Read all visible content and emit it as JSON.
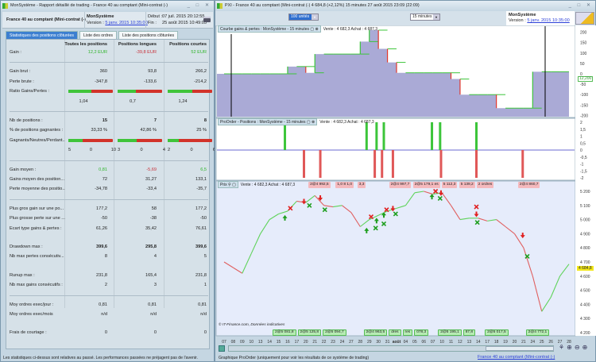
{
  "left": {
    "title": "MonSystème - Rapport détaillé de trading - France 40 au comptant (Mini-contrat (-)",
    "instrument": "France 40 au comptant (Mini-contrat (-)",
    "system_name": "MonSystème",
    "version_label": "Version :",
    "version_value": "5 janv. 2015 10:35:00",
    "start_label": "Début :",
    "start_value": "07 juil. 2015 20:12:55",
    "end_label": "Fin :",
    "end_value": "25 août 2015 10:49:05",
    "tabs": [
      {
        "label": "Statistiques des positions clôturées",
        "active": true
      },
      {
        "label": "Liste des ordres"
      },
      {
        "label": "Liste des positions clôturées"
      }
    ],
    "columns": [
      "Toutes les positions",
      "Positions longues",
      "Positions courtes"
    ],
    "rows": [
      {
        "type": "value",
        "label": "Gain :",
        "values": [
          "12,2 EUR",
          "-39,8 EUR",
          "52 EUR"
        ],
        "colors": [
          "green",
          "red",
          "green"
        ]
      },
      {
        "type": "divider"
      },
      {
        "type": "value",
        "label": "Gain brut :",
        "values": [
          "360",
          "93,8",
          "266,2"
        ]
      },
      {
        "type": "value",
        "label": "Perte brute :",
        "values": [
          "-347,8",
          "-133,6",
          "-214,2"
        ]
      },
      {
        "type": "bar",
        "label": "Ratio Gains/Pertes :",
        "fractions": [
          0.51,
          0.41,
          0.55
        ]
      },
      {
        "type": "value",
        "label": "",
        "values": [
          "1,04",
          "0,7",
          "1,24"
        ],
        "center": true
      },
      {
        "type": "divider"
      },
      {
        "type": "value",
        "label": "Nb de positions :",
        "values": [
          "15",
          "7",
          "8"
        ],
        "bold": true
      },
      {
        "type": "value",
        "label": "% de positions gagnantes :",
        "values": [
          "33,33 %",
          "42,86 %",
          "25 %"
        ]
      },
      {
        "type": "bar",
        "label": "Gagnants/Neutres/Perdant...",
        "fractions": [
          0.33,
          0.43,
          0.25
        ]
      },
      {
        "type": "counts",
        "counts": [
          [
            "5",
            "0",
            "10"
          ],
          [
            "3",
            "0",
            "4"
          ],
          [
            "2",
            "0",
            "6"
          ]
        ]
      },
      {
        "type": "divider"
      },
      {
        "type": "value",
        "label": "Gain moyen :",
        "values": [
          "0,81",
          "-5,69",
          "6,5"
        ],
        "colors": [
          "green",
          "red",
          "green"
        ]
      },
      {
        "type": "value",
        "label": "Gains moyen des position...",
        "values": [
          "72",
          "31,27",
          "133,1"
        ]
      },
      {
        "type": "value",
        "label": "Perte moyenne des positio...",
        "values": [
          "-34,78",
          "-33,4",
          "-35,7"
        ]
      },
      {
        "type": "divider"
      },
      {
        "type": "value",
        "label": "Plus gros gain sur une po...",
        "values": [
          "177,2",
          "58",
          "177,2"
        ]
      },
      {
        "type": "value",
        "label": "Plus grosse perte sur une ...",
        "values": [
          "-50",
          "-38",
          "-50"
        ]
      },
      {
        "type": "value",
        "label": "Ecart type gains & pertes :",
        "values": [
          "61,26",
          "35,42",
          "76,61"
        ]
      },
      {
        "type": "spacer"
      },
      {
        "type": "value",
        "label": "Drawdown max :",
        "values": [
          "399,6",
          "295,8",
          "399,6"
        ],
        "bold": true
      },
      {
        "type": "value",
        "label": "Nb max pertes consécutiv...",
        "values": [
          "8",
          "4",
          "5"
        ]
      },
      {
        "type": "spacer"
      },
      {
        "type": "value",
        "label": "Runup max :",
        "values": [
          "231,8",
          "165,4",
          "231,8"
        ]
      },
      {
        "type": "value",
        "label": "Nb max gains consécutifs :",
        "values": [
          "2",
          "3",
          "1"
        ]
      },
      {
        "type": "divider"
      },
      {
        "type": "value",
        "label": "Moy ordres exec/jour :",
        "values": [
          "0,81",
          "0,81",
          "0,81"
        ]
      },
      {
        "type": "value",
        "label": "Moy ordres exec/mois",
        "values": [
          "n/d",
          "n/d",
          "n/d"
        ]
      },
      {
        "type": "spacer"
      },
      {
        "type": "value",
        "label": "Frais de courtage :",
        "values": [
          "0",
          "0",
          "0"
        ]
      }
    ],
    "footer": "Les statistiques ci-dessus sont relatives au passé. Les performances passées ne préjagent pas de l'avenir."
  },
  "right": {
    "title": "PXI - France 40 au comptant (Mini-contrat (-)   4 684,8 (+2,12%)   15 minutes  27 août 2015 23:09 (22:09)",
    "units_select": "100 unités",
    "timeframe_select": "15 minutes",
    "system_name": "MonSystème",
    "version_label": "Version :",
    "version_value": "5 janv. 2015 10:35:00",
    "quote": "Vente : 4 682,3 Achat : 4 687,3",
    "equity_header": "Courbe gains & pertes : MonSystème - 15 minutes",
    "positions_header": "ProOrder - Positions : MonSystème - 15 minutes",
    "price_header": "Prix",
    "price_badge": "4 684,8",
    "equity_badge": "12,200",
    "copyright": "© IT-Finance.com, Données indicatives",
    "status": "Graphique ProOrder (uniquement pour voir les résultats de ce système de trading)",
    "status_link": "France 40 au comptant (Mini-contrat (-)",
    "top_order_labels": [
      {
        "text": "2@4 997,7",
        "date_index": 19.5
      },
      {
        "text": "5 112,3",
        "date_index": 23.2
      },
      {
        "text": "5 139,2",
        "date_index": 25.4
      },
      {
        "text": "2@4 992,5",
        "date_index": 10.6
      },
      {
        "text": "1,0  8 1,0",
        "date_index": 13.6
      },
      {
        "text": "3,3",
        "date_index": 16
      },
      {
        "text": "2@5 179,1 es",
        "date_index": 22
      },
      {
        "text": "2 ordres",
        "date_index": 28
      },
      {
        "text": "2@4 860,7",
        "date_index": 33.7
      }
    ],
    "bottom_order_labels": [
      "2@5 081,8",
      "2@5 125,8",
      "2@5 094,7",
      "2@4 963,5",
      "dres",
      "res",
      "078,3",
      "2@5 195,1",
      "87,8",
      "2@5 017,5",
      "2@4 772,1"
    ]
  },
  "colors": {
    "green": "#2fb52a",
    "red": "#c8313a",
    "equity_fill": "#aaaad6",
    "equity_up": "#3cc53a",
    "equity_down": "#e0372d",
    "price_bg": "#e6ecfb",
    "accent": "#3c7fd0",
    "badge": "#f3e81a"
  },
  "chart_data": [
    {
      "type": "area",
      "name": "Courbe gains & pertes",
      "x": [
        "07",
        "08",
        "09",
        "10",
        "13",
        "14",
        "15",
        "16",
        "17",
        "20",
        "21",
        "22",
        "23",
        "24",
        "27",
        "28",
        "29",
        "30",
        "31",
        "août",
        "04",
        "05",
        "06",
        "07",
        "10",
        "11",
        "12",
        "13",
        "14",
        "17",
        "18",
        "19",
        "20",
        "21",
        "24",
        "25",
        "26",
        "27",
        "28"
      ],
      "values": [
        0,
        0,
        0,
        0,
        0,
        0,
        0,
        35,
        35,
        5,
        95,
        95,
        95,
        95,
        95,
        155,
        210,
        120,
        55,
        5,
        5,
        5,
        5,
        5,
        5,
        -25,
        -100,
        -100,
        -100,
        -100,
        -165,
        -165,
        -165,
        -165,
        10,
        10,
        10,
        10,
        10
      ],
      "ylim": [
        -210,
        220
      ],
      "yticks": [
        200,
        150,
        100,
        50,
        0,
        -50,
        -100,
        -150,
        -200
      ]
    },
    {
      "type": "bar",
      "name": "ProOrder - Positions",
      "ylim": [
        -2,
        2
      ],
      "yticks": [
        "2",
        "1,5",
        "1",
        "0,5",
        "0",
        "-0,5",
        "-1",
        "-1,5",
        "-2"
      ],
      "bars": [
        {
          "date_index": 6.7,
          "value": 2
        },
        {
          "date_index": 15.7,
          "value": 2
        },
        {
          "date_index": 16.8,
          "value": 2
        },
        {
          "date_index": 17.6,
          "value": 2
        },
        {
          "date_index": 22.9,
          "value": 2
        },
        {
          "date_index": 23.8,
          "value": 2
        },
        {
          "date_index": 27.8,
          "value": 2
        },
        {
          "date_index": 8.8,
          "value": -2
        },
        {
          "date_index": 10.6,
          "value": -2
        },
        {
          "date_index": 16.6,
          "value": -2
        },
        {
          "date_index": 17.4,
          "value": -2
        },
        {
          "date_index": 18.6,
          "value": -2
        },
        {
          "date_index": 23.9,
          "value": -2
        },
        {
          "date_index": 27.8,
          "value": -2
        },
        {
          "date_index": 32.9,
          "value": -2
        }
      ]
    },
    {
      "type": "line",
      "name": "Prix",
      "x": [
        "07",
        "08",
        "09",
        "10",
        "13",
        "14",
        "15",
        "16",
        "17",
        "20",
        "21",
        "22",
        "23",
        "24",
        "27",
        "28",
        "29",
        "30",
        "31",
        "août",
        "04",
        "05",
        "06",
        "07",
        "10",
        "11",
        "12",
        "13",
        "14",
        "17",
        "18",
        "19",
        "20",
        "21",
        "24",
        "25",
        "26",
        "27",
        "28"
      ],
      "values": [
        4700,
        4660,
        4620,
        4760,
        4900,
        5000,
        5040,
        5060,
        5130,
        5120,
        5170,
        5100,
        5090,
        5100,
        5050,
        4950,
        5000,
        5030,
        5060,
        5080,
        5100,
        5190,
        5200,
        5180,
        5190,
        5100,
        5000,
        5010,
        5010,
        4990,
        5000,
        4950,
        4900,
        4800,
        4600,
        4350,
        4450,
        4600,
        4685
      ],
      "ylim": [
        4180,
        5240
      ],
      "yticks": [
        "5 200",
        "5 100",
        "5 000",
        "4 900",
        "4 800",
        "4 700",
        "4 600",
        "4 500",
        "4 400",
        "4 300",
        "4 200"
      ],
      "markers": [
        {
          "date_index": 6.7,
          "price": 5010,
          "type": "buy"
        },
        {
          "date_index": 7.3,
          "price": 5080,
          "type": "exit-short"
        },
        {
          "date_index": 8.8,
          "price": 5130,
          "type": "sell"
        },
        {
          "date_index": 9.4,
          "price": 5100,
          "type": "exit-long"
        },
        {
          "date_index": 10.6,
          "price": 5155,
          "type": "sell"
        },
        {
          "date_index": 11.1,
          "price": 5070,
          "type": "exit-long"
        },
        {
          "date_index": 15.7,
          "price": 4920,
          "type": "buy"
        },
        {
          "date_index": 16.2,
          "price": 5020,
          "type": "exit-short"
        },
        {
          "date_index": 16.8,
          "price": 4990,
          "type": "buy"
        },
        {
          "date_index": 16.7,
          "price": 4940,
          "type": "exit-long"
        },
        {
          "date_index": 17.6,
          "price": 5030,
          "type": "buy"
        },
        {
          "date_index": 17.6,
          "price": 4970,
          "type": "exit-long"
        },
        {
          "date_index": 17.9,
          "price": 5070,
          "type": "exit-short"
        },
        {
          "date_index": 18.6,
          "price": 5080,
          "type": "sell"
        },
        {
          "date_index": 18.9,
          "price": 5040,
          "type": "exit-long"
        },
        {
          "date_index": 22.9,
          "price": 5160,
          "type": "buy"
        },
        {
          "date_index": 23.3,
          "price": 5200,
          "type": "exit-short"
        },
        {
          "date_index": 23.9,
          "price": 5190,
          "type": "sell"
        },
        {
          "date_index": 23.8,
          "price": 5150,
          "type": "exit-long"
        },
        {
          "date_index": 27.8,
          "price": 5090,
          "type": "exit-short"
        },
        {
          "date_index": 27.8,
          "price": 5040,
          "type": "sell"
        },
        {
          "date_index": 27.9,
          "price": 4980,
          "type": "exit-long"
        },
        {
          "date_index": 32.9,
          "price": 4890,
          "type": "sell"
        },
        {
          "date_index": 33.4,
          "price": 4740,
          "type": "exit-long"
        }
      ]
    }
  ]
}
